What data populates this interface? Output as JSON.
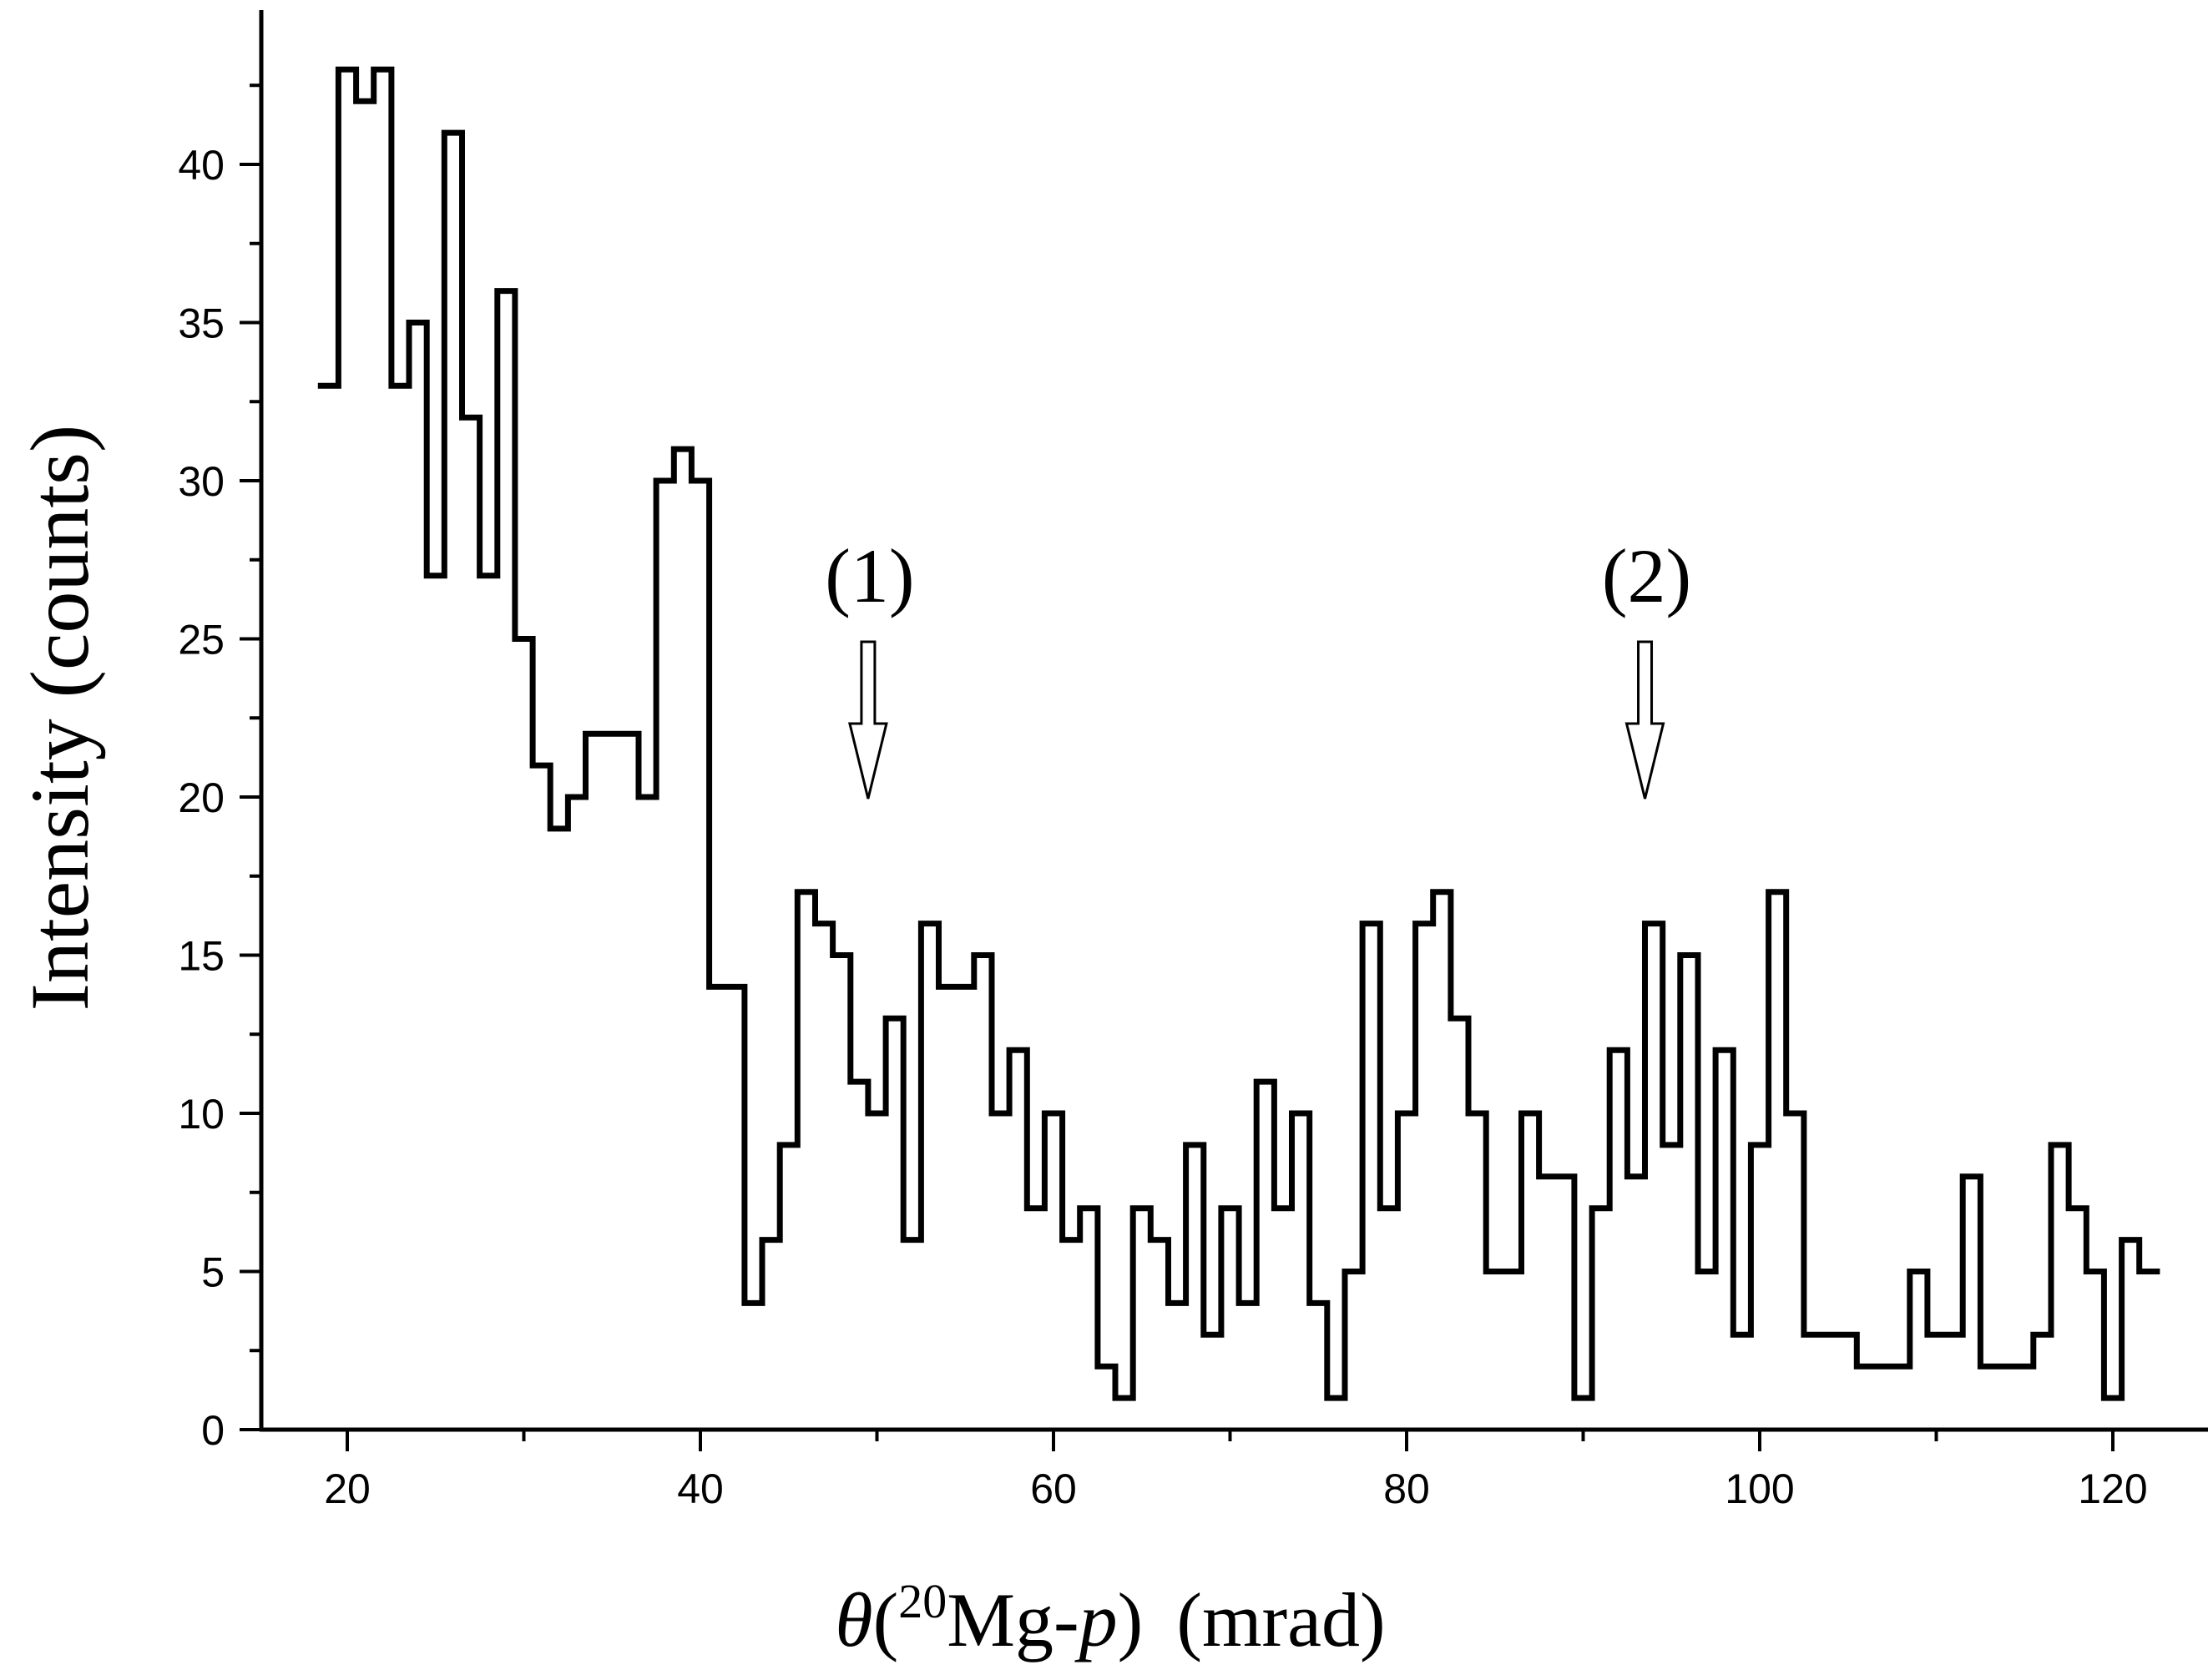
{
  "chart_data": {
    "type": "histogram",
    "title": "",
    "xlabel": {
      "symbol": "θ",
      "open": "(",
      "superscript": "20",
      "species": "Mg-",
      "particle": "p",
      "close": ")",
      "unit": "(mrad)"
    },
    "ylabel": "Intensity (counts)",
    "xlim": [
      15,
      125
    ],
    "ylim": [
      0,
      44
    ],
    "xticks": [
      20,
      40,
      60,
      80,
      100,
      120
    ],
    "yticks": [
      0,
      5,
      10,
      15,
      20,
      25,
      30,
      35,
      40
    ],
    "bin_start": 18.5,
    "bin_width": 1,
    "counts": [
      33,
      43,
      42,
      43,
      33,
      35,
      27,
      41,
      32,
      27,
      36,
      25,
      21,
      19,
      20,
      22,
      22,
      22,
      20,
      30,
      31,
      30,
      14,
      14,
      4,
      6,
      9,
      17,
      16,
      15,
      11,
      10,
      13,
      6,
      16,
      14,
      14,
      15,
      10,
      12,
      7,
      10,
      6,
      7,
      2,
      1,
      7,
      6,
      4,
      9,
      3,
      7,
      4,
      11,
      7,
      10,
      4,
      1,
      5,
      16,
      7,
      10,
      16,
      17,
      13,
      10,
      5,
      5,
      10,
      8,
      8,
      1,
      7,
      12,
      8,
      16,
      9,
      15,
      5,
      12,
      3,
      9,
      17,
      10,
      3,
      3,
      3,
      2,
      2,
      2,
      5,
      3,
      3,
      8,
      2,
      2,
      2,
      3,
      9,
      7,
      5,
      1,
      6,
      5
    ],
    "annotations": [
      {
        "label": "(1)",
        "x": 49.5,
        "arrow_tip_y": 20
      },
      {
        "label": "(2)",
        "x": 93.5,
        "arrow_tip_y": 20
      }
    ]
  }
}
